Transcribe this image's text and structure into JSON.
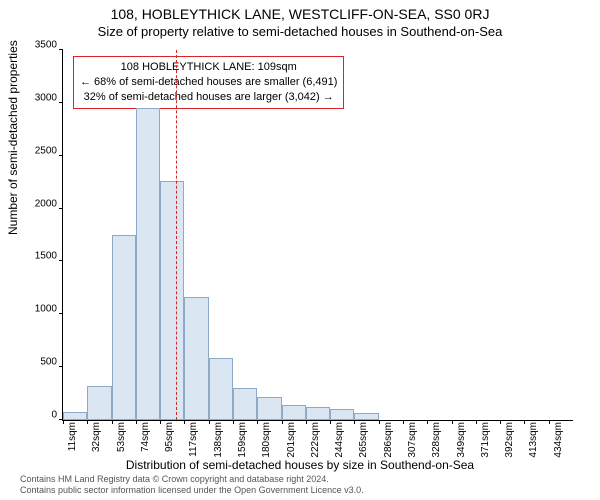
{
  "title": "108, HOBLEYTHICK LANE, WESTCLIFF-ON-SEA, SS0 0RJ",
  "subtitle": "Size of property relative to semi-detached houses in Southend-on-Sea",
  "ylabel": "Number of semi-detached properties",
  "xlabel": "Distribution of semi-detached houses by size in Southend-on-Sea",
  "footer1": "Contains HM Land Registry data © Crown copyright and database right 2024.",
  "footer2": "Contains public sector information licensed under the Open Government Licence v3.0.",
  "chart": {
    "type": "histogram",
    "bar_fill": "#dbe6f3",
    "bar_border": "#8fa9c9",
    "marker_color": "#d62728",
    "background_color": "#ffffff",
    "ylim": [
      0,
      3500
    ],
    "ytick_step": 500,
    "x_start": 11,
    "x_step": 21,
    "n_bars": 21,
    "bar_values": [
      80,
      320,
      1750,
      2950,
      2260,
      1160,
      590,
      300,
      220,
      140,
      120,
      100,
      70,
      0,
      0,
      0,
      0,
      0,
      0,
      0,
      0
    ],
    "marker_x": 109,
    "xtick_labels": [
      "11sqm",
      "32sqm",
      "53sqm",
      "74sqm",
      "95sqm",
      "117sqm",
      "138sqm",
      "159sqm",
      "180sqm",
      "201sqm",
      "222sqm",
      "244sqm",
      "265sqm",
      "286sqm",
      "307sqm",
      "328sqm",
      "349sqm",
      "371sqm",
      "392sqm",
      "413sqm",
      "434sqm"
    ],
    "label_fontsize": 12,
    "tick_fontsize": 10
  },
  "annotation": {
    "line1": "108 HOBLEYTHICK LANE: 109sqm",
    "line2": "← 68% of semi-detached houses are smaller (6,491)",
    "line3": "32% of semi-detached houses are larger (3,042) →",
    "border_color": "#d62728"
  }
}
